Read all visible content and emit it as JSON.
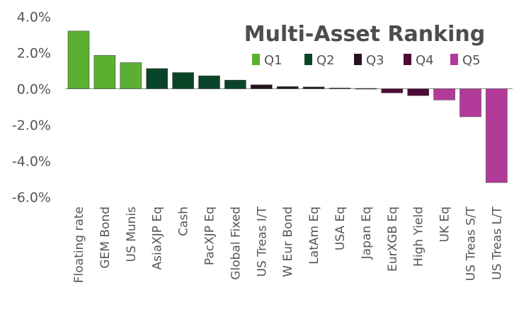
{
  "chart_data": {
    "type": "bar",
    "title": "Multi-Asset Ranking",
    "xlabel": "",
    "ylabel": "",
    "ylim": [
      -6,
      4
    ],
    "yticks": [
      4,
      2,
      0,
      -2,
      -4,
      -6
    ],
    "ytick_labels": [
      "4.0%",
      "2.0%",
      "0.0%",
      "-2.0%",
      "-4.0%",
      "-6.0%"
    ],
    "grid": false,
    "legend_position": "top-right",
    "categories": [
      "Floating rate",
      "GEM Bond",
      "US Munis",
      "AsiaXJP Eq",
      "Cash",
      "PacXJP Eq",
      "Global Fixed",
      "US Treas I/T",
      "W Eur Bond",
      "LatAm Eq",
      "USA Eq",
      "Japan Eq",
      "EurXGB Eq",
      "High Yield",
      "UK Eq",
      "US Treas S/T",
      "US Treas L/T"
    ],
    "values": [
      3.2,
      1.85,
      1.45,
      1.12,
      0.9,
      0.72,
      0.48,
      0.22,
      0.12,
      0.1,
      0.04,
      0.02,
      -0.23,
      -0.38,
      -0.62,
      -1.55,
      -5.2
    ],
    "quintiles": [
      1,
      1,
      1,
      2,
      2,
      2,
      2,
      3,
      3,
      3,
      3,
      3,
      4,
      4,
      5,
      5,
      5
    ],
    "legend": [
      {
        "label": "Q1",
        "color": "#5bb032"
      },
      {
        "label": "Q2",
        "color": "#0a4428"
      },
      {
        "label": "Q3",
        "color": "#26121e"
      },
      {
        "label": "Q4",
        "color": "#4f0a38"
      },
      {
        "label": "Q5",
        "color": "#b23a98"
      }
    ]
  }
}
